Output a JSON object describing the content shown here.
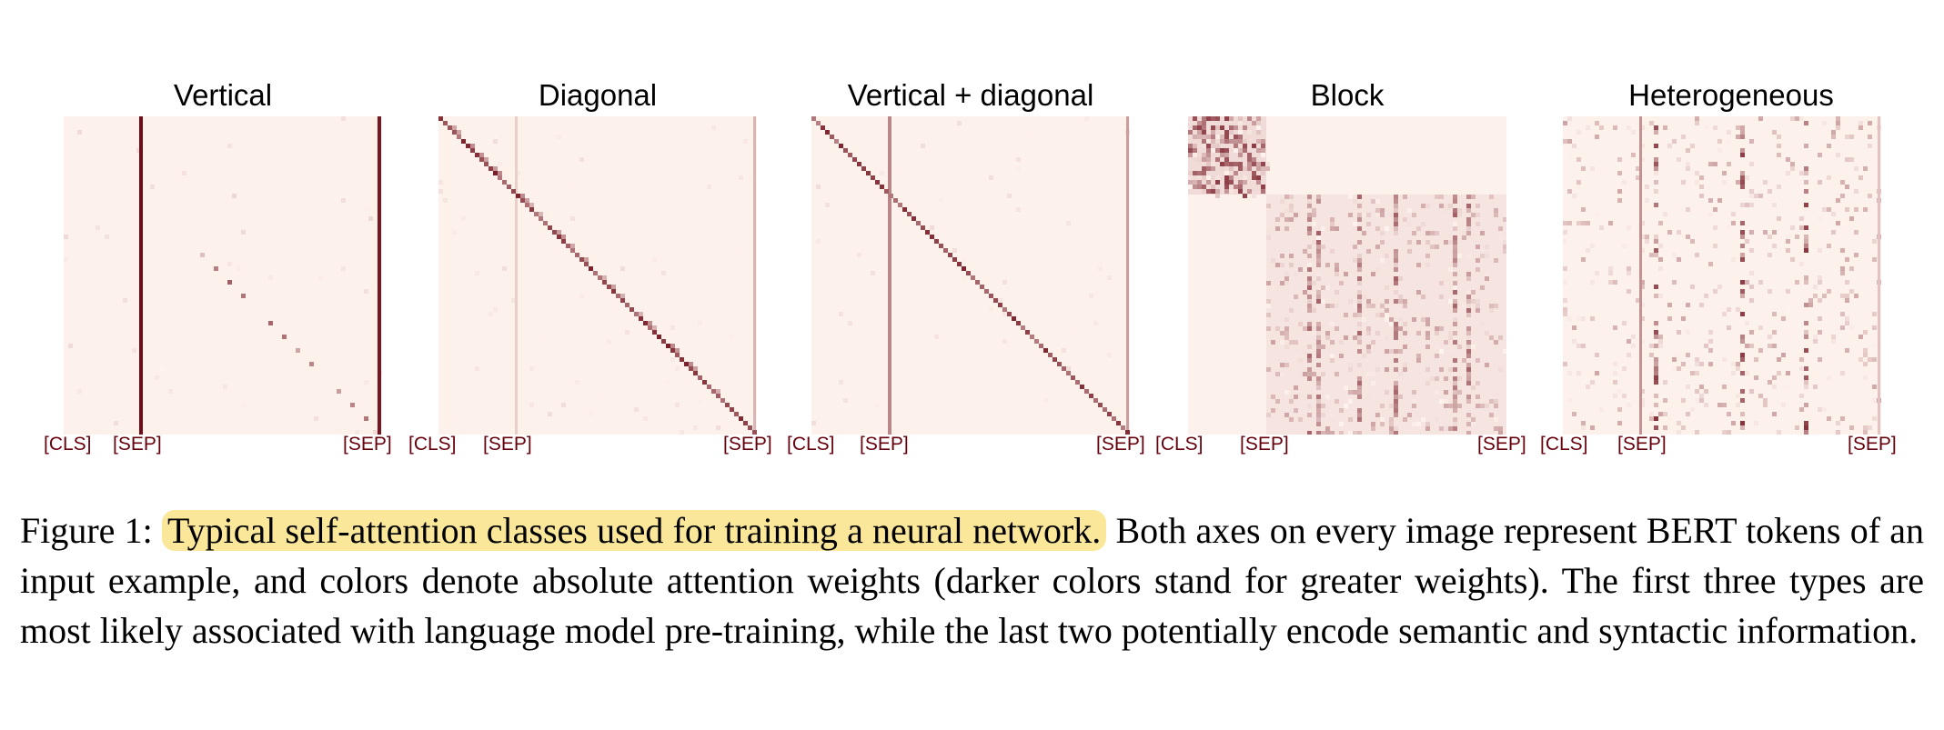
{
  "figure": {
    "panels": [
      {
        "id": "vertical",
        "title": "Vertical",
        "pattern": "vertical",
        "ticks": {
          "cls": "[CLS]",
          "sep1": "[SEP]",
          "sep2": "[SEP]"
        }
      },
      {
        "id": "diagonal",
        "title": "Diagonal",
        "pattern": "diagonal",
        "ticks": {
          "cls": "[CLS]",
          "sep1": "[SEP]",
          "sep2": "[SEP]"
        }
      },
      {
        "id": "vertical-diagonal",
        "title": "Vertical + diagonal",
        "pattern": "vertical+diagonal",
        "ticks": {
          "cls": "[CLS]",
          "sep1": "[SEP]",
          "sep2": "[SEP]"
        }
      },
      {
        "id": "block",
        "title": "Block",
        "pattern": "block",
        "ticks": {
          "cls": "[CLS]",
          "sep1": "[SEP]",
          "sep2": "[SEP]"
        }
      },
      {
        "id": "heterogeneous",
        "title": "Heterogeneous",
        "pattern": "heterogeneous",
        "ticks": {
          "cls": "[CLS]",
          "sep1": "[SEP]",
          "sep2": "[SEP]"
        }
      }
    ],
    "colormap": {
      "low": "#fff3ee",
      "high": "#67000d"
    }
  },
  "caption": {
    "label": "Figure 1: ",
    "highlighted": "Typical self-attention classes used for training a neural network.",
    "rest": " Both axes on every image represent BERT tokens of an input example, and colors denote absolute attention weights (darker colors stand for greater weights).  The first three types are most likely associated with language model pre-training, while the last two potentially encode semantic and syntactic information.",
    "highlight_color": "#fbe79a"
  }
}
